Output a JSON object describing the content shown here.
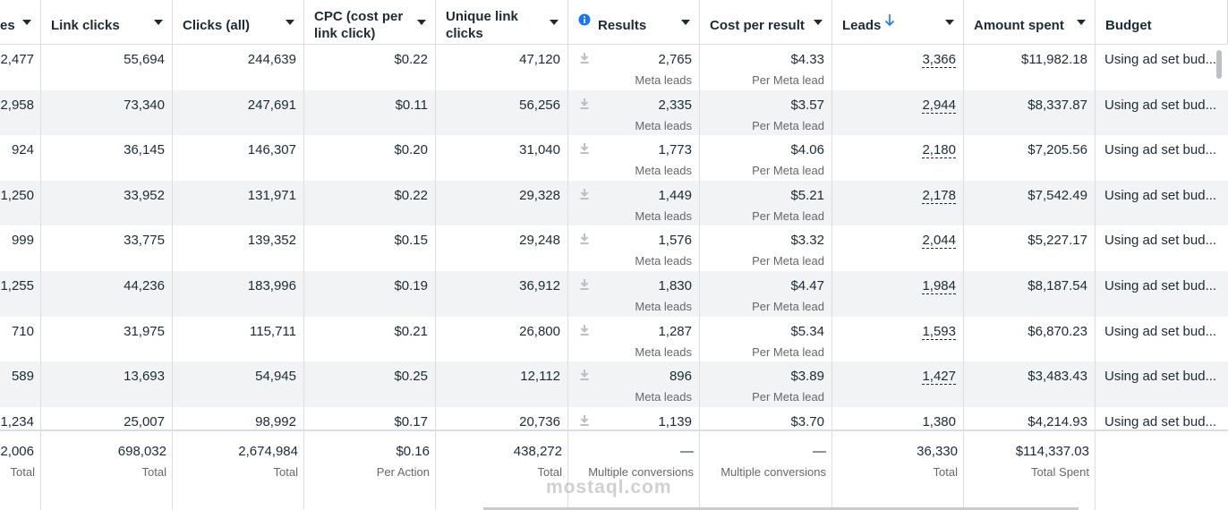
{
  "table": {
    "headers": [
      "es",
      "Link clicks",
      "Clicks (all)",
      "CPC (cost per link click)",
      "Unique link clicks",
      "Results",
      "Cost per result",
      "Leads",
      "Amount spent",
      "Budget"
    ],
    "rows": [
      [
        "2,477",
        "55,694",
        "244,639",
        "$0.22",
        "47,120",
        {
          "text": "2,765",
          "note": "Meta leads"
        },
        {
          "text": "$4.33",
          "note": "Per Meta lead"
        },
        "3,366",
        "$11,982.18",
        "Using ad set bud..."
      ],
      [
        "2,958",
        "73,340",
        "247,691",
        "$0.11",
        "56,256",
        {
          "text": "2,335",
          "note": "Meta leads"
        },
        {
          "text": "$3.57",
          "note": "Per Meta lead"
        },
        "2,944",
        "$8,337.87",
        "Using ad set bud..."
      ],
      [
        "924",
        "36,145",
        "146,307",
        "$0.20",
        "31,040",
        {
          "text": "1,773",
          "note": "Meta leads"
        },
        {
          "text": "$4.06",
          "note": "Per Meta lead"
        },
        "2,180",
        "$7,205.56",
        "Using ad set bud..."
      ],
      [
        "1,250",
        "33,952",
        "131,971",
        "$0.22",
        "29,328",
        {
          "text": "1,449",
          "note": "Meta leads"
        },
        {
          "text": "$5.21",
          "note": "Per Meta lead"
        },
        "2,178",
        "$7,542.49",
        "Using ad set bud..."
      ],
      [
        "999",
        "33,775",
        "139,352",
        "$0.15",
        "29,248",
        {
          "text": "1,576",
          "note": "Meta leads"
        },
        {
          "text": "$3.32",
          "note": "Per Meta lead"
        },
        "2,044",
        "$5,227.17",
        "Using ad set bud..."
      ],
      [
        "1,255",
        "44,236",
        "183,996",
        "$0.19",
        "36,912",
        {
          "text": "1,830",
          "note": "Meta leads"
        },
        {
          "text": "$4.47",
          "note": "Per Meta lead"
        },
        "1,984",
        "$8,187.54",
        "Using ad set bud..."
      ],
      [
        "710",
        "31,975",
        "115,711",
        "$0.21",
        "26,800",
        {
          "text": "1,287",
          "note": "Meta leads"
        },
        {
          "text": "$5.34",
          "note": "Per Meta lead"
        },
        "1,593",
        "$6,870.23",
        "Using ad set bud..."
      ],
      [
        "589",
        "13,693",
        "54,945",
        "$0.25",
        "12,112",
        {
          "text": "896",
          "note": "Meta leads"
        },
        {
          "text": "$3.89",
          "note": "Per Meta lead"
        },
        "1,427",
        "$3,483.43",
        "Using ad set bud..."
      ],
      [
        "1,234",
        "25,007",
        "98,992",
        "$0.17",
        "20,736",
        {
          "text": "1,139"
        },
        {
          "text": "$3.70"
        },
        "1,380",
        "$4,214.93",
        "Using ad set bud..."
      ]
    ],
    "totals": [
      {
        "text": "2,006",
        "note": "Total"
      },
      {
        "text": "698,032",
        "note": "Total"
      },
      {
        "text": "2,674,984",
        "note": "Total"
      },
      {
        "text": "$0.16",
        "note": "Per Action"
      },
      {
        "text": "438,272",
        "note": "Total"
      },
      {
        "text": "—",
        "note": "Multiple conversions"
      },
      {
        "text": "—",
        "note": "Multiple conversions"
      },
      {
        "text": "36,330",
        "note": "Total"
      },
      {
        "text": "$114,337.03",
        "note": "Total Spent"
      }
    ]
  },
  "watermark": "mostaql.com"
}
